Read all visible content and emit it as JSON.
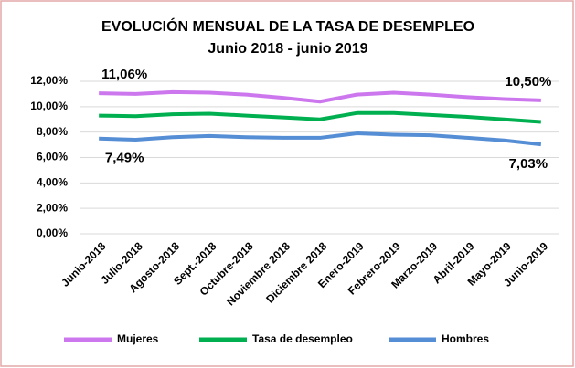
{
  "chart_data": {
    "type": "line",
    "title": "EVOLUCIÓN MENSUAL DE LA TASA DE DESEMPLEO",
    "subtitle": "Junio 2018 - junio 2019",
    "categories": [
      "Junio-2018",
      "Julio-2018",
      "Agosto-2018",
      "Sept.-2018",
      "Octubre-2018",
      "Noviembre 2018",
      "Diciembre 2018",
      "Enero-2019",
      "Febrero-2019",
      "Marzo-2019",
      "Abril-2019",
      "Mayo-2019",
      "Junio-2019"
    ],
    "series": [
      {
        "name": "Mujeres",
        "color": "#cc77ee",
        "values": [
          11.06,
          11.0,
          11.15,
          11.1,
          10.95,
          10.7,
          10.4,
          10.95,
          11.1,
          10.95,
          10.75,
          10.6,
          10.5
        ],
        "value_labels": [
          "11,06%",
          null,
          null,
          null,
          null,
          null,
          null,
          null,
          null,
          null,
          null,
          null,
          "10,50%"
        ]
      },
      {
        "name": "Tasa de desempleo",
        "color": "#00b050",
        "values": [
          9.3,
          9.25,
          9.4,
          9.45,
          9.3,
          9.15,
          9.0,
          9.5,
          9.5,
          9.35,
          9.2,
          9.0,
          8.8
        ]
      },
      {
        "name": "Hombres",
        "color": "#558ed5",
        "values": [
          7.49,
          7.4,
          7.6,
          7.7,
          7.6,
          7.55,
          7.55,
          7.9,
          7.8,
          7.75,
          7.55,
          7.35,
          7.03
        ],
        "value_labels": [
          "7,49%",
          null,
          null,
          null,
          null,
          null,
          null,
          null,
          null,
          null,
          null,
          null,
          "7,03%"
        ]
      }
    ],
    "ylim": [
      0,
      12
    ],
    "yticks": [
      {
        "value": 0,
        "label": "0,00%"
      },
      {
        "value": 2,
        "label": "2,00%"
      },
      {
        "value": 4,
        "label": "4,00%"
      },
      {
        "value": 6,
        "label": "6,00%"
      },
      {
        "value": 8,
        "label": "8,00%"
      },
      {
        "value": 10,
        "label": "10,00%"
      },
      {
        "value": 12,
        "label": "12,00%"
      }
    ],
    "grid": true,
    "legend": "bottom"
  }
}
